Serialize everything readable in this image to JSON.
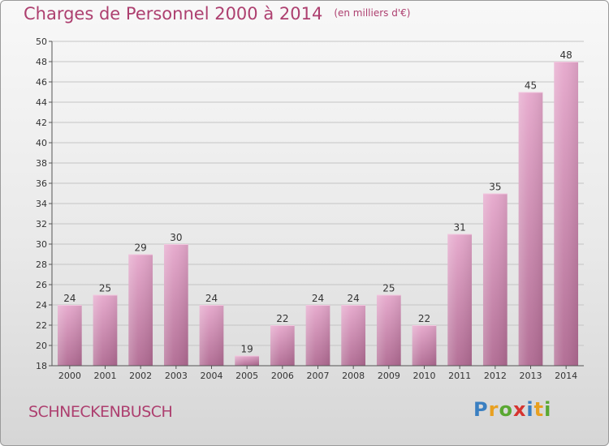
{
  "header": {
    "title": "Charges de Personnel 2000 à 2014",
    "subtitle": "(en milliers d'€)"
  },
  "footer": {
    "commune": "SCHNECKENBUSCH",
    "brand": "Proxiti",
    "brand_letters": [
      {
        "ch": "P",
        "color": "#3a7fc1"
      },
      {
        "ch": "r",
        "color": "#e8a020"
      },
      {
        "ch": "o",
        "color": "#5aa832"
      },
      {
        "ch": "x",
        "color": "#d6342f"
      },
      {
        "ch": "i",
        "color": "#3a7fc1"
      },
      {
        "ch": "t",
        "color": "#e8a020"
      },
      {
        "ch": "i",
        "color": "#5aa832"
      }
    ]
  },
  "chart_data": {
    "type": "bar",
    "title": "Charges de Personnel 2000 à 2014",
    "subtitle": "(en milliers d'€)",
    "categories": [
      "2000",
      "2001",
      "2002",
      "2003",
      "2004",
      "2005",
      "2006",
      "2007",
      "2008",
      "2009",
      "2010",
      "2011",
      "2012",
      "2013",
      "2014"
    ],
    "values": [
      24,
      25,
      29,
      30,
      24,
      19,
      22,
      24,
      24,
      25,
      22,
      31,
      35,
      45,
      48
    ],
    "ylim": [
      18,
      50
    ],
    "yticks": [
      18,
      20,
      22,
      24,
      26,
      28,
      30,
      32,
      34,
      36,
      38,
      40,
      42,
      44,
      46,
      48,
      50
    ],
    "grid": "horizontal",
    "bar_color": "#d88fba",
    "xlabel": "",
    "ylabel": ""
  }
}
